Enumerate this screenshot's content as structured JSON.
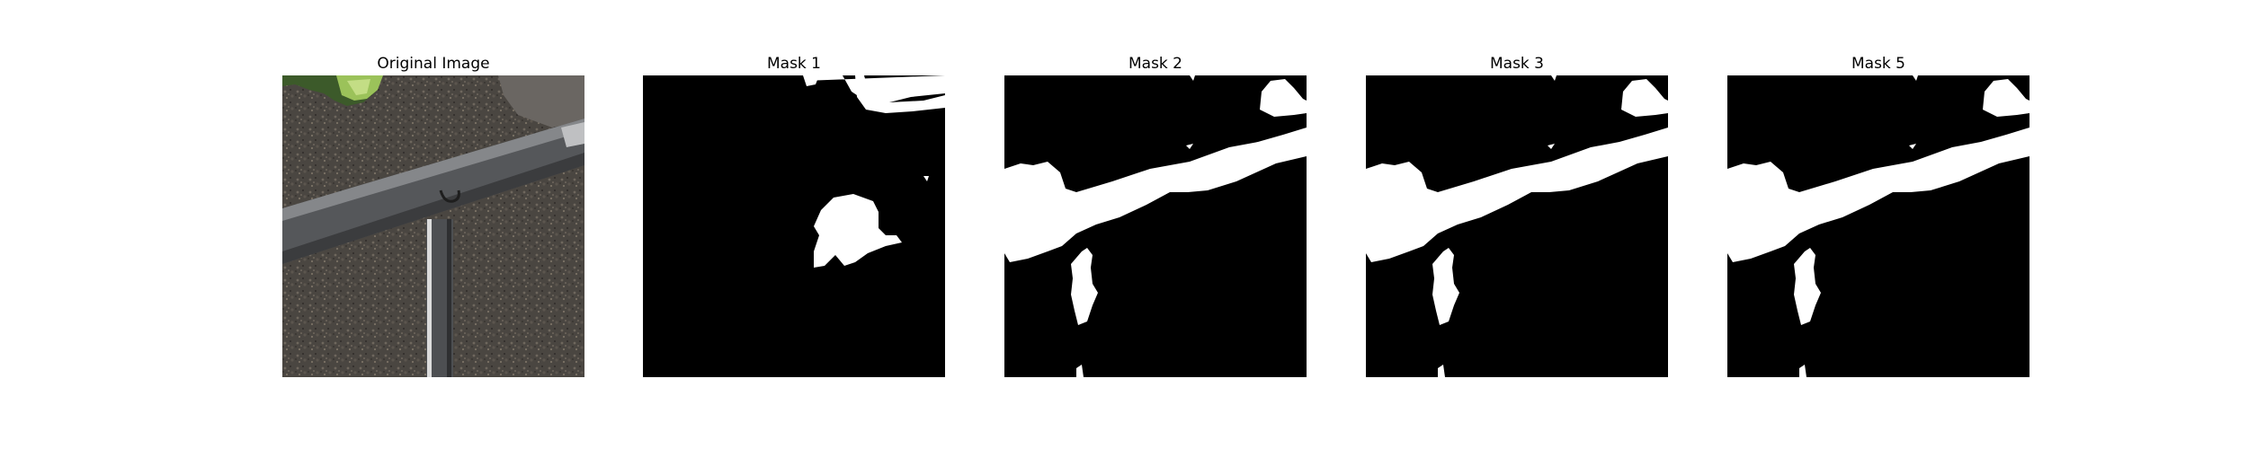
{
  "figure": {
    "panels": [
      {
        "title": "Original Image",
        "kind": "photo"
      },
      {
        "title": "Mask 1",
        "kind": "mask"
      },
      {
        "title": "Mask 2",
        "kind": "mask"
      },
      {
        "title": "Mask 3",
        "kind": "mask"
      },
      {
        "title": "Mask 5",
        "kind": "mask"
      }
    ]
  },
  "colors": {
    "mask_background": "#000000",
    "mask_foreground": "#ffffff",
    "ground": "#4a4641",
    "rail": "#6b6c6e",
    "foliage": "#9bc25a"
  }
}
